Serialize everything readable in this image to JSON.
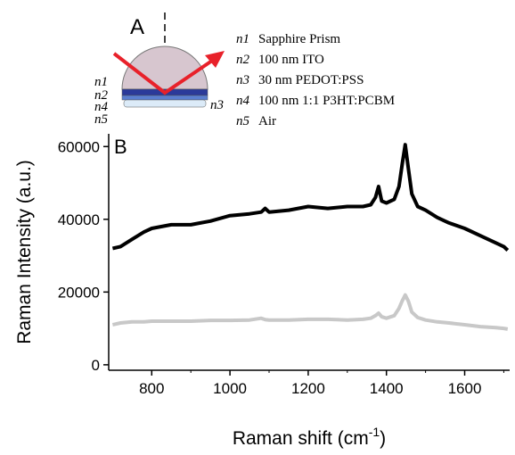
{
  "diagram": {
    "label": "A",
    "layer_labels": [
      "n1",
      "n2",
      "n3",
      "n4",
      "n5"
    ],
    "items": [
      {
        "symbol": "n1",
        "text": "Sapphire Prism"
      },
      {
        "symbol": "n2",
        "text": "100 nm ITO"
      },
      {
        "symbol": "n3",
        "text": "30 nm PEDOT:PSS"
      },
      {
        "symbol": "n4",
        "text": "100 nm 1:1 P3HT:PCBM"
      },
      {
        "symbol": "n5",
        "text": "Air"
      }
    ]
  },
  "chart_data": {
    "type": "line",
    "panel_label": "B",
    "ylabel": "Raman Intensity (a.u.)",
    "xlabel": {
      "text": "Raman shift (cm",
      "sup": "-1",
      "end": ")"
    },
    "x": [
      700,
      720,
      750,
      780,
      800,
      850,
      900,
      950,
      1000,
      1050,
      1080,
      1090,
      1100,
      1150,
      1200,
      1250,
      1300,
      1340,
      1360,
      1372,
      1380,
      1388,
      1400,
      1420,
      1432,
      1440,
      1448,
      1456,
      1465,
      1480,
      1500,
      1530,
      1560,
      1600,
      1640,
      1680,
      1700,
      1710
    ],
    "series": [
      {
        "color": "#000000",
        "values": [
          32000,
          32500,
          34500,
          36500,
          37500,
          38500,
          38500,
          39500,
          41000,
          41500,
          42000,
          43000,
          42000,
          42500,
          43500,
          43000,
          43500,
          43500,
          44000,
          46000,
          49000,
          45000,
          44500,
          45500,
          49000,
          55000,
          60500,
          54000,
          47000,
          43500,
          42500,
          40500,
          39000,
          37500,
          35500,
          33500,
          32500,
          31500
        ]
      },
      {
        "color": "#c8c8c8",
        "values": [
          11000,
          11500,
          11800,
          11800,
          12000,
          12000,
          12000,
          12200,
          12200,
          12300,
          12800,
          12400,
          12300,
          12300,
          12500,
          12500,
          12300,
          12500,
          12800,
          13500,
          14200,
          13200,
          12800,
          13500,
          15500,
          17500,
          19200,
          17500,
          14500,
          13000,
          12300,
          11800,
          11500,
          11000,
          10500,
          10200,
          10000,
          9800
        ]
      }
    ],
    "xlim": [
      690,
      1715
    ],
    "xticks": [
      800,
      1000,
      1200,
      1400,
      1600
    ],
    "ylim": [
      -1500,
      63500
    ],
    "yticks": [
      0,
      20000,
      40000,
      60000
    ]
  }
}
